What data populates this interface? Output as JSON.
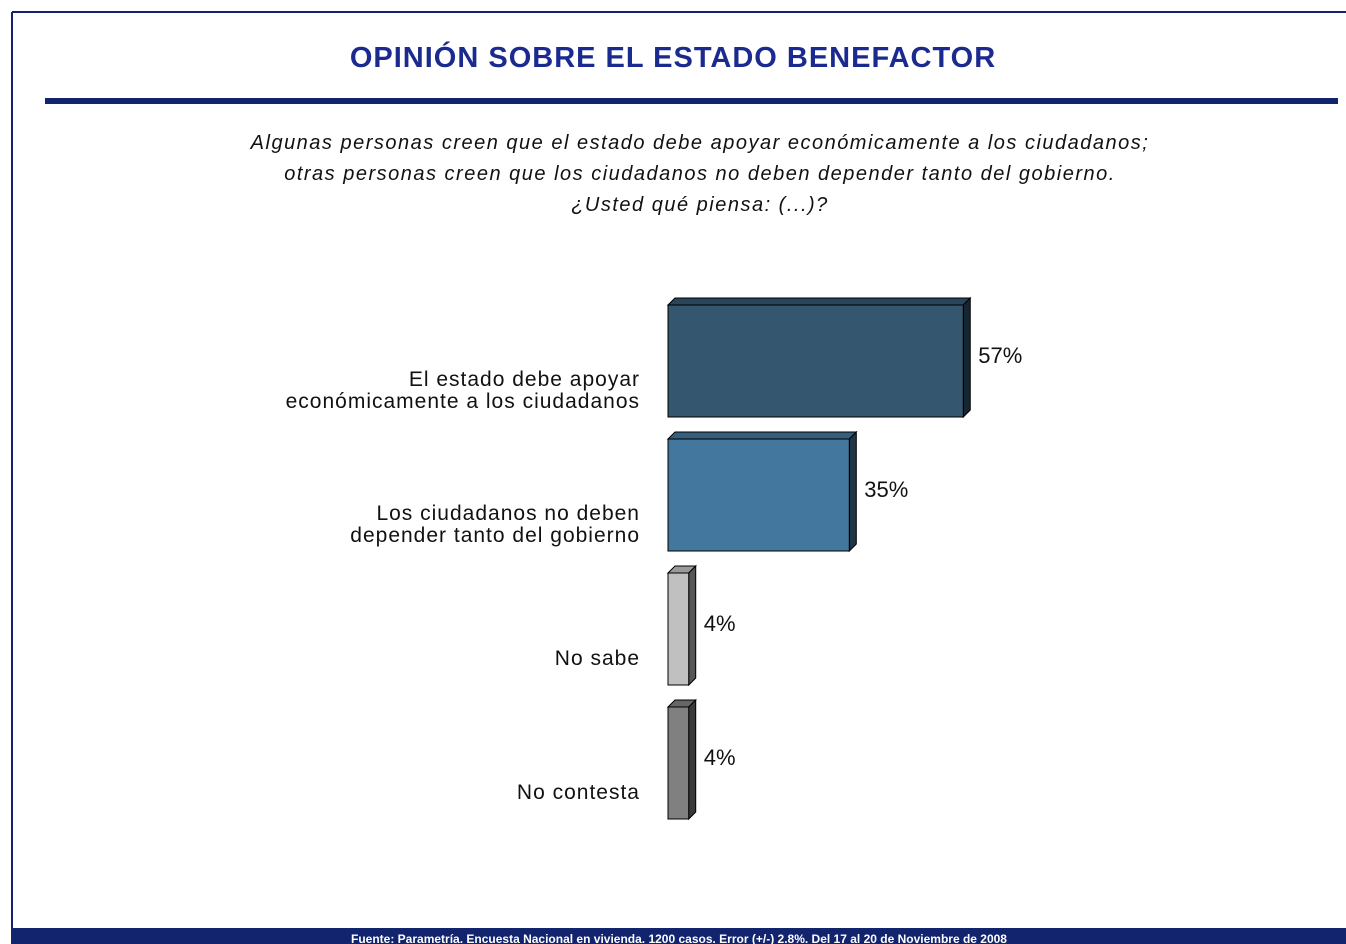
{
  "chart_data": {
    "type": "bar",
    "orientation": "horizontal",
    "title": "OPINIÓN SOBRE EL ESTADO BENEFACTOR",
    "subtitle": [
      "Algunas personas creen que el estado debe apoyar económicamente a los ciudadanos;",
      "otras personas creen que los ciudadanos no deben depender tanto del gobierno.",
      "¿Usted qué piensa: (...)?"
    ],
    "categories": [
      "El estado debe apoyar económicamente a los ciudadanos",
      "Los ciudadanos no deben depender tanto del gobierno",
      "No sabe",
      "No contesta"
    ],
    "values": [
      57,
      35,
      4,
      4
    ],
    "value_labels": [
      "57%",
      "35%",
      "4%",
      "4%"
    ],
    "colors": [
      "#34566f",
      "#44779e",
      "#c0c0c0",
      "#808080"
    ],
    "footnote": "Fuente: Parametría. Encuesta Nacional en vivienda. 1200 casos. Error (+/-) 2.8%. Del 17 al 20 de Noviembre de 2008"
  }
}
